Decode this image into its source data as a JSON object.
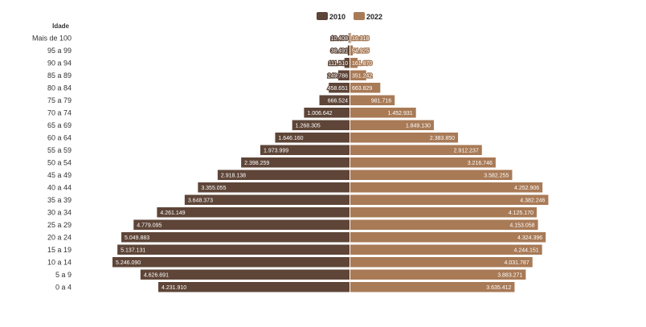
{
  "chart_data": {
    "type": "bar",
    "orientation": "horizontal-pyramid",
    "ylabel": "Idade",
    "legend_position": "top-center",
    "grid": false,
    "categories": [
      "Mais de 100",
      "95 a 99",
      "90 a 94",
      "85 a 89",
      "80 a 84",
      "75 a 79",
      "70 a 74",
      "65 a 69",
      "60 a 64",
      "55 a 59",
      "50 a 54",
      "45 a 49",
      "40 a 44",
      "35 a 39",
      "30 a 34",
      "25 a 29",
      "20 a 24",
      "15 a 19",
      "10 a 14",
      "5 a 9",
      "0 a 4"
    ],
    "series": [
      {
        "name": "2010",
        "color": "#5e4538",
        "side": "left",
        "values": [
          10408,
          38491,
          111510,
          249786,
          458651,
          666524,
          1006642,
          1268305,
          1646160,
          1973999,
          2398259,
          2918138,
          3355055,
          3648373,
          4261149,
          4779095,
          5049883,
          5137131,
          5246090,
          4626691,
          4231910
        ],
        "labels": [
          "10.408",
          "38.491",
          "111.510",
          "249.786",
          "458.651",
          "666.524",
          "1.006.642",
          "1.268.305",
          "1.646.160",
          "1.973.999",
          "2.398.259",
          "2.918.138",
          "3.355.055",
          "3.648.373",
          "4.261.149",
          "4.779.095",
          "5.049.883",
          "5.137.131",
          "5.246.090",
          "4.626.691",
          "4.231.910"
        ]
      },
      {
        "name": "2022",
        "color": "#a87a56",
        "side": "right",
        "values": [
          16318,
          54925,
          161870,
          351242,
          663829,
          981716,
          1452931,
          1849130,
          2383850,
          2912237,
          3216746,
          3582255,
          4252906,
          4382246,
          4125170,
          4153058,
          4324396,
          4244151,
          4031787,
          3883271,
          3635412
        ],
        "labels": [
          "16.318",
          "54.925",
          "161.870",
          "351.242",
          "663.829",
          "981.716",
          "1.452.931",
          "1.849.130",
          "2.383.850",
          "2.912.237",
          "3.216.746",
          "3.582.255",
          "4.252.906",
          "4.382.246",
          "4.125.170",
          "4.153.058",
          "4.324.396",
          "4.244.151",
          "4.031.787",
          "3.883.271",
          "3.635.412"
        ]
      }
    ]
  }
}
